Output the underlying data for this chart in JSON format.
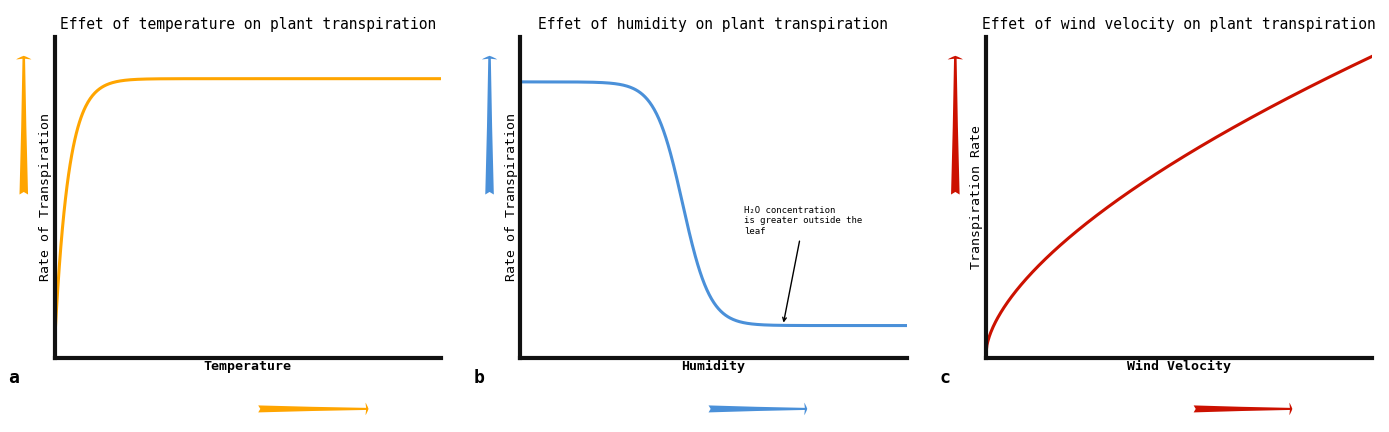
{
  "title1": "Effet of temperature on plant transpiration",
  "title2": "Effet of humidity on plant transpiration",
  "title3": "Effet of wind velocity on plant transpiration",
  "xlabel1": "Temperature",
  "xlabel2": "Humidity",
  "xlabel3": "Wind Velocity",
  "ylabel1": "Rate of Transpiration",
  "ylabel2": "Rate of Transpiration",
  "ylabel3": "Transpiration Rate",
  "label_a": "a",
  "label_b": "b",
  "label_c": "c",
  "color1": "#FFA500",
  "color2": "#4A90D9",
  "color3": "#CC1100",
  "annotation_text": "H₂O concentration\nis greater outside the\nleaf",
  "bg_color": "#FFFFFF",
  "axis_color": "#111111",
  "title_fontsize": 10.5,
  "axis_label_fontsize": 9.5,
  "curve_linewidth": 2.2
}
